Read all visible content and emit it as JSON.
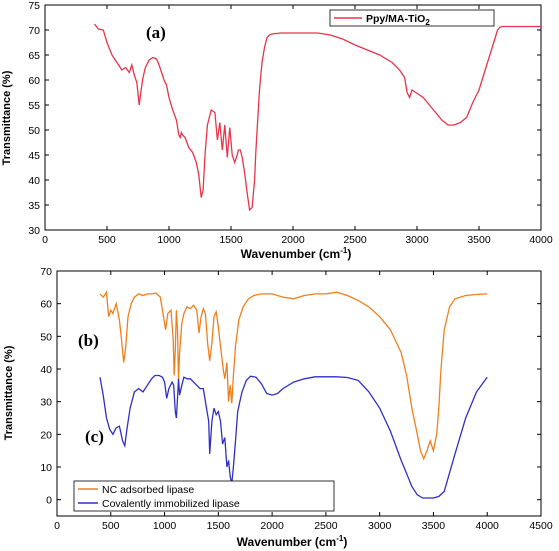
{
  "chart_data": [
    {
      "type": "line",
      "panel_label": "(a)",
      "xlabel_main": "Wavenumber (cm",
      "xlabel_sup": "-1",
      "xlabel_tail": ")",
      "ylabel": "Transmittance (%)",
      "xlim": [
        0,
        4000
      ],
      "ylim": [
        30,
        75
      ],
      "x_ticks": [
        0,
        500,
        1000,
        1500,
        2000,
        2500,
        3000,
        3500,
        4000
      ],
      "y_ticks": [
        30,
        35,
        40,
        45,
        50,
        55,
        60,
        65,
        70,
        75
      ],
      "legend_position": "top-right",
      "legend_label_main": "Ppy/MA-TiO",
      "legend_label_sub": "2",
      "series": [
        {
          "name": "Ppy/MA-TiO2",
          "color": "#e8344a",
          "x": [
            400,
            430,
            470,
            500,
            540,
            580,
            620,
            650,
            680,
            700,
            720,
            740,
            760,
            775,
            790,
            810,
            840,
            870,
            900,
            920,
            940,
            960,
            980,
            1000,
            1030,
            1060,
            1080,
            1090,
            1100,
            1110,
            1130,
            1160,
            1190,
            1220,
            1240,
            1260,
            1275,
            1290,
            1310,
            1340,
            1370,
            1390,
            1410,
            1430,
            1450,
            1470,
            1490,
            1510,
            1530,
            1550,
            1560,
            1575,
            1590,
            1610,
            1630,
            1650,
            1670,
            1690,
            1700,
            1715,
            1730,
            1750,
            1770,
            1790,
            1810,
            1830,
            1850,
            1870,
            1900,
            1950,
            2000,
            2100,
            2200,
            2300,
            2400,
            2500,
            2600,
            2700,
            2800,
            2860,
            2900,
            2920,
            2940,
            2960,
            2990,
            3050,
            3100,
            3150,
            3200,
            3250,
            3300,
            3350,
            3400,
            3450,
            3500,
            3550,
            3600,
            3650,
            3670,
            3690,
            3720,
            3760,
            3800,
            3900,
            4000
          ],
          "y": [
            71.2,
            70.2,
            70,
            67.5,
            65,
            63.5,
            62,
            62.5,
            61.5,
            63,
            61,
            59.5,
            55,
            58,
            60.5,
            62.5,
            64,
            64.5,
            64.2,
            63,
            61.5,
            60,
            59,
            56.5,
            54,
            52,
            49,
            48.5,
            49.5,
            49,
            48.5,
            46.5,
            45.5,
            43.5,
            41,
            36.5,
            38,
            45,
            51,
            54,
            53.5,
            48,
            51.5,
            46,
            51,
            44.5,
            50.5,
            45,
            43.5,
            45,
            46,
            46,
            44.5,
            41.5,
            37.5,
            34,
            34.5,
            40,
            45.5,
            52,
            58,
            63.5,
            66.5,
            68.5,
            69,
            69.2,
            69.3,
            69.3,
            69.4,
            69.4,
            69.4,
            69.4,
            69.4,
            69,
            68.2,
            67,
            66,
            65,
            63.5,
            62,
            60.5,
            57.5,
            56.5,
            58,
            57.5,
            56.5,
            55,
            53.5,
            52,
            51,
            51,
            51.5,
            52.5,
            55.5,
            58,
            62,
            66,
            70,
            70.6,
            70.7,
            70.7,
            70.7,
            70.7,
            70.7,
            70.7
          ]
        }
      ]
    },
    {
      "type": "line",
      "panel_labels": [
        "(b)",
        "(c)"
      ],
      "xlabel_main": "Wavenumber (cm",
      "xlabel_sup": "-1",
      "xlabel_tail": ")",
      "ylabel": "Transmittance (%)",
      "xlim": [
        0,
        4500
      ],
      "ylim": [
        -5,
        70
      ],
      "x_ticks": [
        0,
        500,
        1000,
        1500,
        2000,
        2500,
        3000,
        3500,
        4000,
        4500
      ],
      "y_ticks": [
        0,
        10,
        20,
        30,
        40,
        50,
        60,
        70
      ],
      "legend_position": "bottom-left",
      "series": [
        {
          "name": "NC adsorbed lipase",
          "color": "#f07f1e",
          "x": [
            400,
            430,
            460,
            480,
            500,
            520,
            550,
            580,
            600,
            620,
            640,
            660,
            690,
            720,
            760,
            800,
            840,
            880,
            920,
            960,
            990,
            1010,
            1030,
            1060,
            1080,
            1090,
            1100,
            1110,
            1120,
            1130,
            1140,
            1160,
            1180,
            1210,
            1240,
            1270,
            1300,
            1320,
            1340,
            1360,
            1380,
            1400,
            1420,
            1440,
            1460,
            1480,
            1500,
            1520,
            1545,
            1560,
            1580,
            1595,
            1610,
            1625,
            1640,
            1660,
            1690,
            1730,
            1780,
            1830,
            1900,
            2000,
            2100,
            2200,
            2300,
            2400,
            2500,
            2600,
            2700,
            2800,
            2900,
            3000,
            3100,
            3200,
            3250,
            3300,
            3350,
            3380,
            3410,
            3440,
            3470,
            3500,
            3530,
            3550,
            3570,
            3600,
            3650,
            3700,
            3800,
            3900,
            4000
          ],
          "y": [
            63,
            62,
            63.5,
            56,
            58,
            57,
            60,
            55,
            49,
            42,
            47,
            56,
            60,
            62,
            63,
            62.5,
            63,
            63,
            63.2,
            62,
            56,
            52,
            57,
            58,
            49,
            38,
            46,
            58,
            52,
            36.5,
            45,
            54,
            57,
            59,
            58.5,
            59.5,
            58,
            51,
            56,
            58.5,
            57,
            48,
            42.5,
            48,
            56,
            57.5,
            53,
            47,
            40,
            37,
            42,
            30,
            35,
            29.5,
            38,
            47,
            55,
            59,
            61.5,
            62.5,
            63,
            63,
            62,
            61.5,
            62.5,
            63,
            63,
            63.5,
            62.5,
            61,
            59,
            56,
            52,
            45,
            38,
            28,
            20,
            15,
            12.5,
            15,
            18,
            15,
            20,
            28,
            40,
            52,
            59,
            61.5,
            62.5,
            62.8,
            63
          ]
        },
        {
          "name": "Covalently immobilized lipase",
          "color": "#2f2fc8",
          "x": [
            400,
            430,
            460,
            490,
            520,
            550,
            580,
            610,
            630,
            650,
            680,
            720,
            760,
            800,
            840,
            880,
            910,
            950,
            980,
            1000,
            1020,
            1040,
            1070,
            1085,
            1100,
            1110,
            1120,
            1130,
            1140,
            1160,
            1180,
            1210,
            1240,
            1270,
            1300,
            1330,
            1360,
            1390,
            1410,
            1420,
            1440,
            1460,
            1480,
            1500,
            1520,
            1540,
            1560,
            1580,
            1595,
            1610,
            1625,
            1640,
            1660,
            1680,
            1720,
            1760,
            1800,
            1850,
            1900,
            1950,
            2000,
            2050,
            2100,
            2200,
            2300,
            2400,
            2500,
            2600,
            2700,
            2800,
            2900,
            3000,
            3100,
            3200,
            3250,
            3300,
            3350,
            3400,
            3450,
            3500,
            3550,
            3600,
            3700,
            3800,
            3900,
            4000
          ],
          "y": [
            37.5,
            32,
            25,
            21.5,
            20,
            22,
            22.5,
            18,
            16.5,
            21.5,
            28,
            33,
            34,
            33,
            35,
            37,
            38,
            38,
            37.5,
            36,
            31,
            34,
            36,
            35,
            27,
            25,
            31,
            37,
            32,
            35,
            37.5,
            37,
            37,
            36,
            35,
            34,
            34,
            28,
            24,
            14,
            24,
            28,
            26,
            27,
            24,
            17,
            19,
            10,
            12,
            7,
            5,
            10,
            18,
            27,
            33,
            36.5,
            37.8,
            37.5,
            35.5,
            32.5,
            32,
            32.5,
            34,
            36,
            37,
            37.6,
            37.6,
            37.6,
            37.4,
            36.5,
            33,
            28,
            21,
            12,
            8,
            4,
            1.5,
            0.5,
            0.5,
            0.5,
            1,
            2.5,
            14,
            25,
            33,
            37.5
          ]
        }
      ]
    }
  ]
}
